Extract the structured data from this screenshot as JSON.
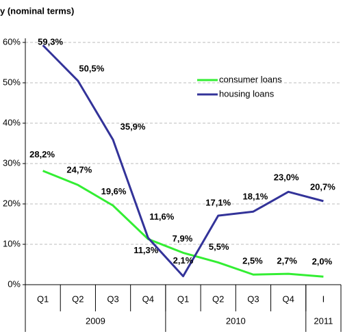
{
  "chart_data": {
    "type": "line",
    "title": "y (nominal terms)",
    "categories": [
      "Q1",
      "Q2",
      "Q3",
      "Q4",
      "Q1",
      "Q2",
      "Q3",
      "Q4",
      "I"
    ],
    "x_groups": [
      {
        "label": "2009",
        "span": 4
      },
      {
        "label": "2010",
        "span": 4
      },
      {
        "label": "2011",
        "span": 1
      }
    ],
    "series": [
      {
        "name": "consumer loans",
        "color": "#33ee33",
        "values": [
          28.2,
          24.7,
          19.6,
          11.3,
          7.9,
          5.5,
          2.5,
          2.7,
          2.0
        ],
        "value_labels": [
          "28,2%",
          "24,7%",
          "19,6%",
          "11,3%",
          "7,9%",
          "5,5%",
          "2,5%",
          "2,7%",
          "2,0%"
        ]
      },
      {
        "name": "housing loans",
        "color": "#333399",
        "values": [
          59.3,
          50.5,
          35.9,
          11.6,
          2.1,
          17.1,
          18.1,
          23.0,
          20.7
        ],
        "value_labels": [
          "59,3%",
          "50,5%",
          "35,9%",
          "11,6%",
          "2,1%",
          "17,1%",
          "18,1%",
          "23,0%",
          "20,7%"
        ]
      }
    ],
    "ylim": [
      0,
      60
    ],
    "yticks": [
      {
        "value": 0,
        "label": "0%"
      },
      {
        "value": 10,
        "label": "10%"
      },
      {
        "value": 20,
        "label": "20%"
      },
      {
        "value": 30,
        "label": "30%"
      },
      {
        "value": 40,
        "label": "40%"
      },
      {
        "value": 50,
        "label": "50%"
      },
      {
        "value": 60,
        "label": "60%"
      }
    ],
    "grid": true
  }
}
